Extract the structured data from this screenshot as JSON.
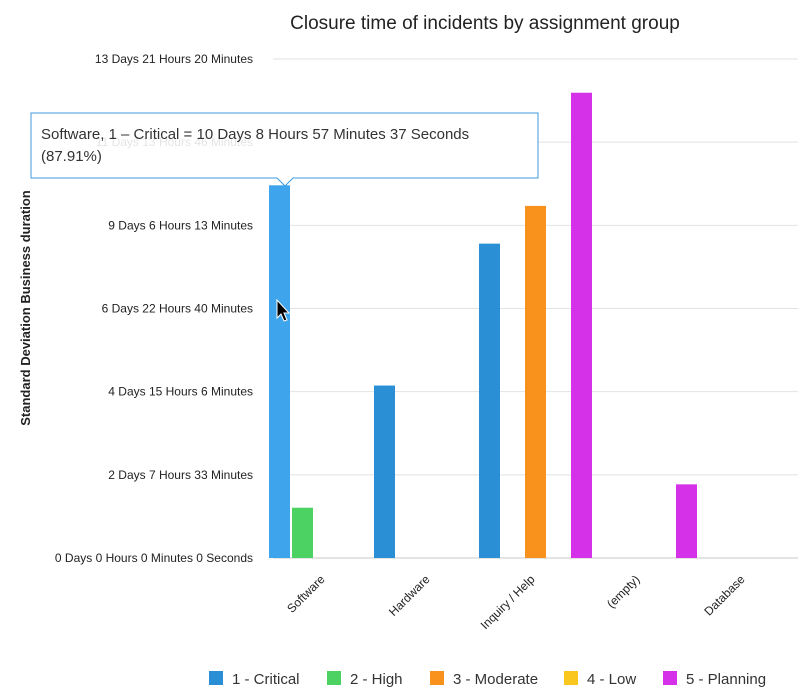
{
  "chart_data": {
    "type": "bar",
    "title": "Closure time of incidents by assignment group",
    "ylabel": "Standard Deviation Business duration",
    "xlabel": "",
    "categories": [
      "Software",
      "Hardware",
      "Inquiry / Help",
      "(empty)",
      "Database"
    ],
    "y_unit": "days",
    "ylim": [
      0,
      13.8889
    ],
    "y_ticks": [
      {
        "value": 0,
        "label": "0 Days 0 Hours 0 Minutes 0 Seconds"
      },
      {
        "value": 2.3148,
        "label": "2 Days 7 Hours 33 Minutes"
      },
      {
        "value": 4.6296,
        "label": "4 Days 15 Hours 6 Minutes"
      },
      {
        "value": 6.9444,
        "label": "6 Days 22 Hours 40 Minutes"
      },
      {
        "value": 9.2593,
        "label": "9 Days 6 Hours 13 Minutes"
      },
      {
        "value": 11.5741,
        "label": "11 Days 13 Hours 46 Minutes"
      },
      {
        "value": 13.8889,
        "label": "13 Days 21 Hours 20 Minutes"
      }
    ],
    "grid": true,
    "legend_position": "bottom",
    "series": [
      {
        "name": "1 - Critical",
        "color": "#2b8fd6",
        "values": [
          10.3733,
          4.8,
          8.75,
          0,
          0
        ]
      },
      {
        "name": "2 - High",
        "color": "#4cd263",
        "values": [
          1.4,
          0,
          0,
          0,
          0
        ]
      },
      {
        "name": "3 - Moderate",
        "color": "#f9921d",
        "values": [
          0,
          0,
          9.8,
          0,
          0
        ]
      },
      {
        "name": "4 - Low",
        "color": "#f9c71d",
        "values": [
          0,
          0,
          0,
          0,
          0
        ]
      },
      {
        "name": "5 - Planning",
        "color": "#d431e8",
        "values": [
          0,
          0,
          12.95,
          2.05,
          0
        ]
      }
    ],
    "tooltip": {
      "line1": "Software, 1 – Critical = 10 Days 8 Hours 57 Minutes 37 Seconds",
      "line2": "(87.91%)"
    }
  }
}
